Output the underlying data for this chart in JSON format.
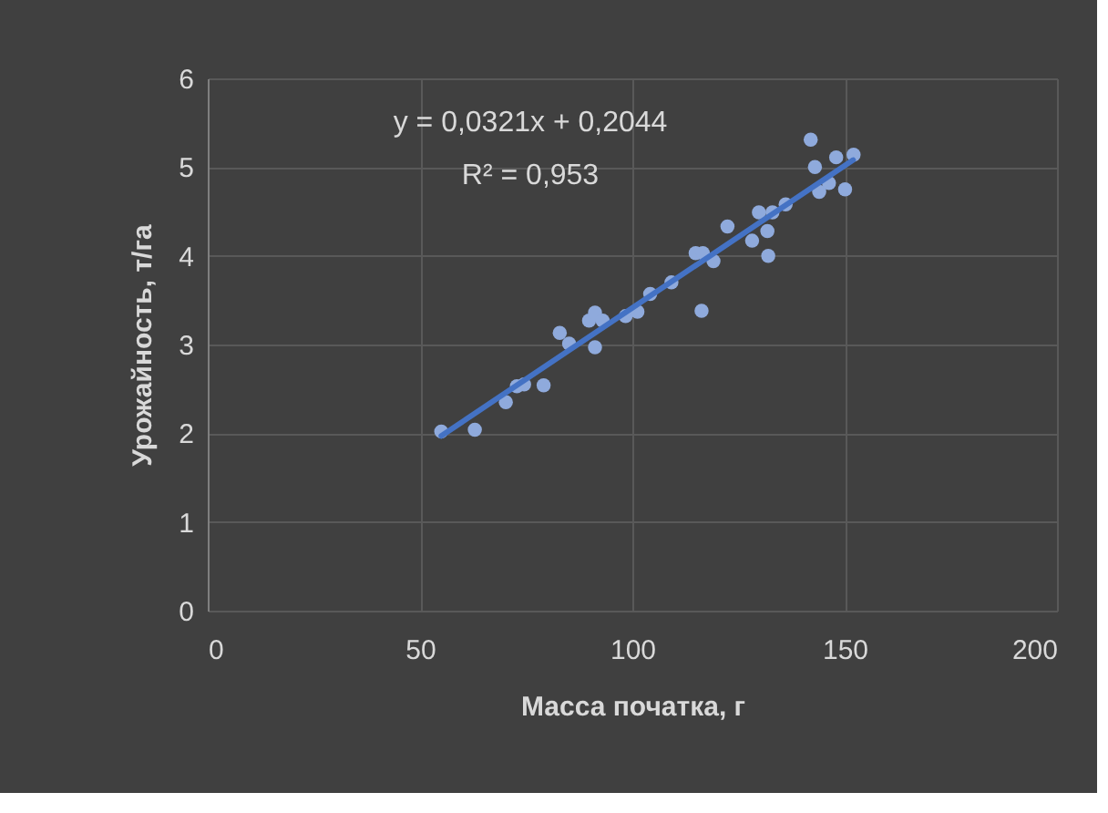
{
  "chart_data": {
    "type": "scatter",
    "xlabel": "Масса початка, г",
    "ylabel": "Урожайность,  т/га",
    "annotations": [
      "y = 0,0321x + 0,2044",
      "R² = 0,953"
    ],
    "xlim": [
      0,
      200
    ],
    "xticks": [
      0,
      50,
      100,
      150,
      200
    ],
    "ylim": [
      0,
      6
    ],
    "yticks": [
      0,
      1,
      2,
      3,
      4,
      5,
      6
    ],
    "grid": true,
    "series": [
      {
        "color": "#8faadc",
        "marker": "circle",
        "x": [
          55.0,
          62.9,
          70.2,
          72.8,
          74.5,
          79.1,
          82.9,
          85.1,
          89.8,
          91.2,
          91.2,
          93.0,
          98.4,
          101.2,
          104.2,
          109.2,
          114.9,
          116.3,
          116.6,
          119.1,
          122.4,
          128.2,
          129.8,
          131.8,
          132.0,
          133.0,
          136.1,
          142.0,
          143.0,
          144.0,
          146.3,
          148.0,
          150.1,
          152.1
        ],
        "values": [
          2.02,
          2.04,
          2.35,
          2.53,
          2.55,
          2.54,
          3.13,
          3.01,
          3.27,
          3.36,
          2.97,
          3.27,
          3.32,
          3.37,
          3.57,
          3.7,
          4.03,
          3.38,
          4.03,
          3.94,
          4.33,
          4.17,
          4.49,
          4.28,
          4.0,
          4.49,
          4.58,
          5.31,
          5.0,
          4.72,
          4.82,
          5.11,
          4.75,
          5.14
        ]
      },
      {
        "type": "line",
        "color": "#4472c4",
        "line_style": "solid",
        "x": [
          55,
          152
        ],
        "values": [
          1.97,
          5.08
        ]
      }
    ]
  }
}
